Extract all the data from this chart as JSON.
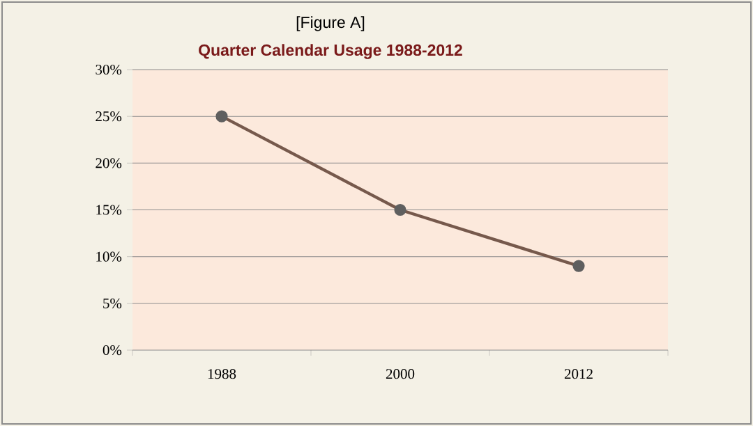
{
  "chart_data": {
    "type": "line",
    "title": "Quarter Calendar Usage 1988-2012",
    "annotations": [
      "[Figure A]"
    ],
    "categories": [
      "1988",
      "2000",
      "2012"
    ],
    "series": [
      {
        "color": "#76594c",
        "values": [
          25,
          15,
          9
        ]
      }
    ],
    "ylim": [
      0,
      30
    ],
    "yticks": [
      {
        "value": 0,
        "label": "0%"
      },
      {
        "value": 5,
        "label": "5%"
      },
      {
        "value": 10,
        "label": "10%"
      },
      {
        "value": 15,
        "label": "15%"
      },
      {
        "value": 20,
        "label": "20%"
      },
      {
        "value": 25,
        "label": "25%"
      },
      {
        "value": 30,
        "label": "30%"
      }
    ],
    "grid": "y",
    "legend": false,
    "marker": "circle",
    "line_style": "solid"
  }
}
